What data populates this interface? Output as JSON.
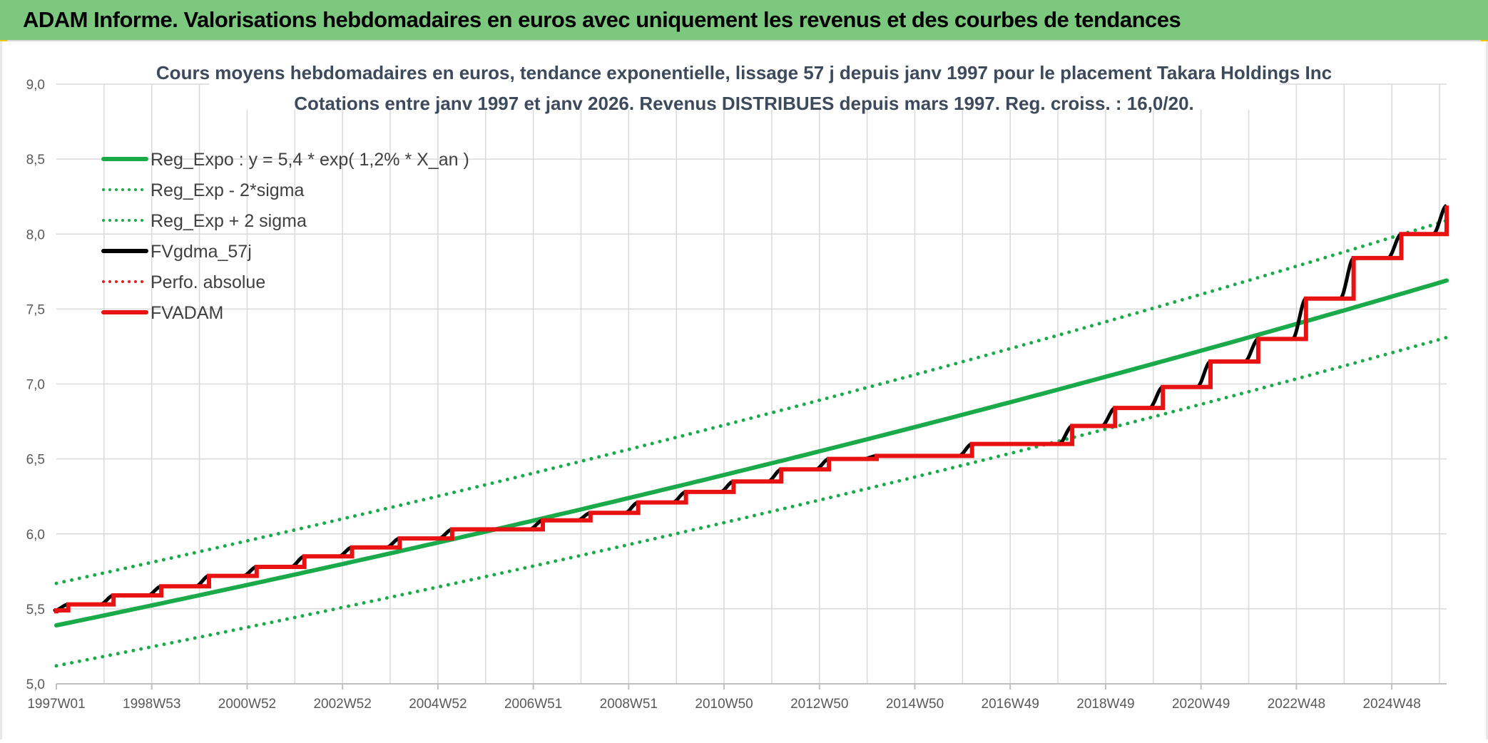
{
  "header": {
    "title": "ADAM Informe. Valorisations hebdomadaires en euros avec uniquement les revenus et des courbes de tendances"
  },
  "chart_data": {
    "type": "line",
    "title": "Cours moyens hebdomadaires en euros, tendance exponentielle, lissage 57 j depuis janv 1997 pour le placement Takara Holdings Inc",
    "subtitle": "Cotations entre janv 1997 et janv 2026. Revenus DISTRIBUES depuis mars 1997. Reg. croiss. : 16,0/20.",
    "xlabel": "",
    "ylabel": "",
    "ylim": [
      5.0,
      9.0
    ],
    "yticks": [
      "5,0",
      "5,5",
      "6,0",
      "6,5",
      "7,0",
      "7,5",
      "8,0",
      "8,5",
      "9,0"
    ],
    "xlim": [
      1997.0,
      2026.15
    ],
    "xticks": [
      {
        "label": "1997W01",
        "x": 1997.0
      },
      {
        "label": "1998W53",
        "x": 1999.0
      },
      {
        "label": "2000W52",
        "x": 2001.0
      },
      {
        "label": "2002W52",
        "x": 2003.0
      },
      {
        "label": "2004W52",
        "x": 2005.0
      },
      {
        "label": "2006W51",
        "x": 2007.0
      },
      {
        "label": "2008W51",
        "x": 2009.0
      },
      {
        "label": "2010W50",
        "x": 2011.0
      },
      {
        "label": "2012W50",
        "x": 2013.0
      },
      {
        "label": "2014W50",
        "x": 2015.0
      },
      {
        "label": "2016W49",
        "x": 2017.0
      },
      {
        "label": "2018W49",
        "x": 2019.0
      },
      {
        "label": "2020W49",
        "x": 2021.0
      },
      {
        "label": "2022W48",
        "x": 2023.0
      },
      {
        "label": "2024W48",
        "x": 2025.0
      }
    ],
    "grid": true,
    "legend_position": "top-left",
    "series": [
      {
        "name": "Reg_Expo : y = 5,4 * exp( 1,2% *  X_an )",
        "color": "#1aaa4a",
        "style": "solid",
        "x": [
          1997.0,
          2026.15
        ],
        "y": [
          5.39,
          7.69
        ]
      },
      {
        "name": "Reg_Exp - 2*sigma",
        "color": "#1aaa4a",
        "style": "dotted",
        "x": [
          1997.0,
          2026.15
        ],
        "y": [
          5.12,
          7.31
        ]
      },
      {
        "name": "Reg_Exp + 2 sigma",
        "color": "#1aaa4a",
        "style": "dotted",
        "x": [
          1997.0,
          2026.15
        ],
        "y": [
          5.67,
          8.09
        ]
      },
      {
        "name": "FVgdma_57j",
        "color": "#000000",
        "style": "solid-smooth",
        "x": [
          1997.0,
          1997.25,
          1998.2,
          1999.2,
          2000.2,
          2001.2,
          2002.2,
          2003.2,
          2004.2,
          2005.3,
          2007.2,
          2008.2,
          2009.2,
          2010.2,
          2011.2,
          2012.2,
          2013.2,
          2014.2,
          2016.2,
          2018.3,
          2019.2,
          2020.2,
          2021.2,
          2022.2,
          2023.2,
          2024.2,
          2025.2,
          2026.15
        ],
        "y": [
          5.49,
          5.53,
          5.59,
          5.65,
          5.72,
          5.78,
          5.85,
          5.91,
          5.97,
          6.03,
          6.09,
          6.14,
          6.21,
          6.28,
          6.35,
          6.43,
          6.5,
          6.52,
          6.6,
          6.72,
          6.84,
          6.98,
          7.15,
          7.3,
          7.57,
          7.84,
          8.0,
          8.19
        ]
      },
      {
        "name": "Perfo. absolue",
        "color": "#e0201a",
        "style": "dotted",
        "x": [],
        "y": []
      },
      {
        "name": "FVADAM",
        "color": "#e81212",
        "style": "step",
        "x": [
          1997.0,
          1997.25,
          1998.2,
          1999.2,
          2000.2,
          2001.2,
          2002.2,
          2003.2,
          2004.2,
          2005.3,
          2007.2,
          2008.2,
          2009.2,
          2010.2,
          2011.2,
          2012.2,
          2013.2,
          2014.2,
          2016.2,
          2018.3,
          2019.2,
          2020.2,
          2021.2,
          2022.2,
          2023.2,
          2024.2,
          2025.2,
          2026.15
        ],
        "y": [
          5.49,
          5.53,
          5.59,
          5.65,
          5.72,
          5.78,
          5.85,
          5.91,
          5.97,
          6.03,
          6.09,
          6.14,
          6.21,
          6.28,
          6.35,
          6.43,
          6.5,
          6.52,
          6.6,
          6.72,
          6.84,
          6.98,
          7.15,
          7.3,
          7.57,
          7.84,
          8.0,
          8.19
        ]
      }
    ]
  }
}
